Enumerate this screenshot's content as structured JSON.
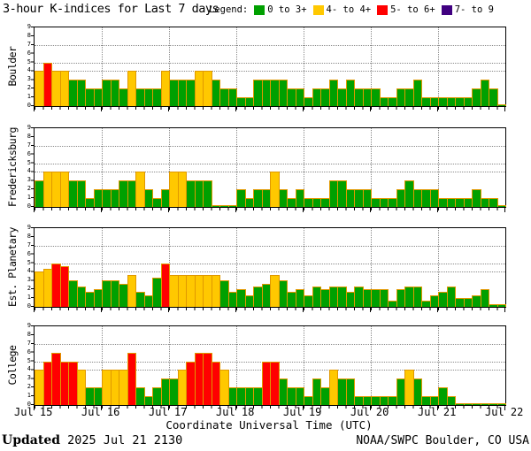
{
  "title": "3-hour K-indices for Last 7 days",
  "legend": {
    "label": "Legend:",
    "items": [
      {
        "label": "0 to 3+",
        "color": "#00a000"
      },
      {
        "label": "4- to 4+",
        "color": "#ffc800"
      },
      {
        "label": "5- to 6+",
        "color": "#ff0000"
      },
      {
        "label": "7- to 9",
        "color": "#400080"
      }
    ]
  },
  "chart_data": {
    "type": "bar",
    "title": "3-hour K-indices for Last 7 days",
    "xlabel": "Coordinate Universal Time (UTC)",
    "x_tick_labels": [
      "Jul 15",
      "Jul 16",
      "Jul 17",
      "Jul 18",
      "Jul 19",
      "Jul 20",
      "Jul 21",
      "Jul 22"
    ],
    "ylim": [
      0,
      9
    ],
    "y_tick_labels": [
      "0",
      "1",
      "2",
      "3",
      "4",
      "5",
      "6",
      "7",
      "8",
      "9"
    ],
    "grid_y": [
      4,
      5,
      7
    ],
    "bars_per_day": 8,
    "days": 7,
    "colors": {
      "green": "#00a000",
      "yellow": "#ffc800",
      "red": "#ff0000",
      "purple": "#400080",
      "bar_outline": "#e09800"
    },
    "color_rules": {
      "green_max": 3.33,
      "yellow_min": 3.67,
      "yellow_max": 4.33,
      "red_min": 4.67,
      "red_max": 6.33,
      "purple_min": 6.67
    },
    "panels": [
      {
        "name": "Boulder",
        "values": [
          4,
          5,
          4,
          4,
          3,
          3,
          2,
          2,
          3,
          3,
          2,
          4,
          2,
          2,
          2,
          4,
          3,
          3,
          3,
          4,
          4,
          3,
          2,
          2,
          1,
          1,
          3,
          3,
          3,
          3,
          2,
          2,
          1,
          2,
          2,
          3,
          2,
          3,
          2,
          2,
          2,
          1,
          1,
          2,
          2,
          3,
          1,
          1,
          1,
          1,
          1,
          1,
          2,
          3,
          2,
          0
        ]
      },
      {
        "name": "Fredericksburg",
        "values": [
          3,
          4,
          4,
          4,
          3,
          3,
          1,
          2,
          2,
          2,
          3,
          3,
          4,
          2,
          1,
          2,
          4,
          4,
          3,
          3,
          3,
          0,
          0,
          0,
          2,
          1,
          2,
          2,
          4,
          2,
          1,
          2,
          1,
          1,
          1,
          3,
          3,
          2,
          2,
          2,
          1,
          1,
          1,
          2,
          3,
          2,
          2,
          2,
          1,
          1,
          1,
          1,
          2,
          1,
          1,
          0
        ]
      },
      {
        "name": "Est. Planetary",
        "values": [
          4,
          4.33,
          5,
          4.67,
          3,
          2.33,
          1.67,
          2,
          3,
          3,
          2.67,
          3.67,
          1.67,
          1.33,
          3.33,
          5,
          3.67,
          3.67,
          3.67,
          3.67,
          3.67,
          3.67,
          3,
          1.67,
          2,
          1.33,
          2.33,
          2.67,
          3.67,
          3,
          1.67,
          2,
          1.33,
          2.33,
          2,
          2.33,
          2.33,
          1.67,
          2.33,
          2,
          2,
          2,
          0.67,
          2,
          2.33,
          2.33,
          0.67,
          1.33,
          1.67,
          2.33,
          1,
          1,
          1.33,
          2,
          0.33,
          0.33
        ]
      },
      {
        "name": "College",
        "values": [
          4,
          5,
          6,
          5,
          5,
          4,
          2,
          2,
          4,
          4,
          4,
          6,
          2,
          1,
          2,
          3,
          3,
          4,
          5,
          6,
          6,
          5,
          4,
          2,
          2,
          2,
          2,
          5,
          5,
          3,
          2,
          2,
          1,
          3,
          2,
          4,
          3,
          3,
          1,
          1,
          1,
          1,
          1,
          3,
          4,
          3,
          1,
          1,
          2,
          1,
          0,
          0,
          0,
          0,
          0,
          0
        ]
      }
    ]
  },
  "footer": {
    "updated_label": "Updated",
    "updated_value": "2025 Jul 21 2130",
    "credit": "NOAA/SWPC Boulder, CO USA"
  }
}
